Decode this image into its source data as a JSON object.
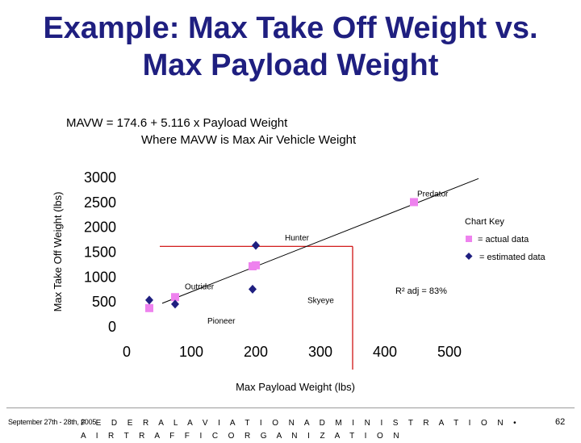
{
  "slide": {
    "title_line1": "Example: Max Take Off Weight vs.",
    "title_line2": "Max Payload Weight",
    "formula_line1": "MAVW =  174.6 + 5.116 x Payload Weight",
    "formula_line2": "Where MAVW is Max Air Vehicle Weight",
    "footer_date": "September 27th - 28th, 2005",
    "footer_agency": "F E D E R A L  A V I A T I O N  A D M I N I S T R A T I O N  •  A I R  T R A F F I C  O R G A N I Z A T I O N",
    "page_number": "62"
  },
  "colors": {
    "title": "#1f1f80",
    "actual_marker": "#ee82ee",
    "estimated_marker": "#1f1f80",
    "guide_line": "#cc0000",
    "regression_line": "#000000"
  },
  "chart_data": {
    "type": "scatter",
    "xlabel": "Max Payload Weight (lbs)",
    "ylabel": "Max Take Off Weight (lbs)",
    "xlim": [
      0,
      500
    ],
    "ylim": [
      0,
      3000
    ],
    "x_ticks": [
      "0",
      "100",
      "200",
      "300",
      "400",
      "500"
    ],
    "y_ticks": [
      "0",
      "500",
      "1000",
      "1500",
      "2000",
      "2500",
      "3000"
    ],
    "grid": false,
    "legend_title": "Chart Key",
    "legend_position": "right",
    "series": [
      {
        "name": "= actual data",
        "marker": "square",
        "points": [
          {
            "x": 35,
            "y": 360
          },
          {
            "x": 75,
            "y": 580
          },
          {
            "x": 195,
            "y": 1200
          },
          {
            "x": 200,
            "y": 1220
          },
          {
            "x": 445,
            "y": 2490
          }
        ]
      },
      {
        "name": "= estimated data",
        "marker": "diamond",
        "points": [
          {
            "x": 35,
            "y": 520
          },
          {
            "x": 75,
            "y": 440
          },
          {
            "x": 195,
            "y": 740
          },
          {
            "x": 200,
            "y": 1620
          }
        ]
      }
    ],
    "regression": {
      "intercept": 174.6,
      "slope": 5.116,
      "x_range": [
        55,
        545
      ]
    },
    "guides": [
      {
        "x": 350,
        "y": 1600
      }
    ],
    "annotations": [
      {
        "text": "Predator",
        "x": 450,
        "y": 2600
      },
      {
        "text": "Hunter",
        "x": 245,
        "y": 1720
      },
      {
        "text": "Outrider",
        "x": 90,
        "y": 740
      },
      {
        "text": "Skyeye",
        "x": 280,
        "y": 460
      },
      {
        "text": "Pioneer",
        "x": 125,
        "y": 50
      }
    ],
    "r2_label": "R² adj  = 83%"
  }
}
